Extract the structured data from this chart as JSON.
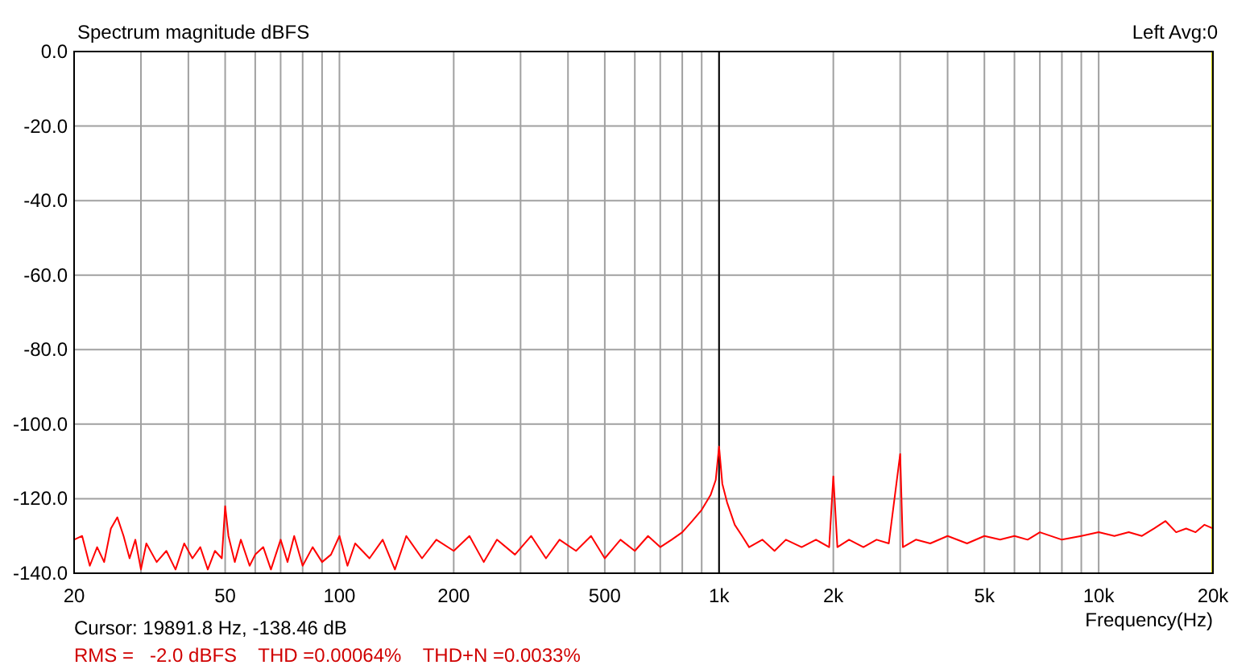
{
  "chart_data": {
    "type": "line",
    "title": "Spectrum magnitude dBFS",
    "xlabel": "Frequency(Hz)",
    "log": "x",
    "grid": true,
    "marker": "none",
    "line_style": "solid",
    "xlim": [
      20,
      20000
    ],
    "ylim": [
      -140,
      0
    ],
    "xticks": [
      20,
      {
        "value": 30,
        "label": null
      },
      {
        "value": 40,
        "label": null
      },
      50,
      {
        "value": 60,
        "label": null
      },
      {
        "value": 70,
        "label": null
      },
      {
        "value": 80,
        "label": null
      },
      {
        "value": 90,
        "label": null
      },
      100,
      200,
      {
        "value": 300,
        "label": null
      },
      {
        "value": 400,
        "label": null
      },
      500,
      {
        "value": 600,
        "label": null
      },
      {
        "value": 700,
        "label": null
      },
      {
        "value": 800,
        "label": null
      },
      {
        "value": 900,
        "label": null
      },
      {
        "value": 1000,
        "label": "1k"
      },
      {
        "value": 2000,
        "label": "2k"
      },
      {
        "value": 3000,
        "label": null
      },
      {
        "value": 4000,
        "label": null
      },
      {
        "value": 5000,
        "label": "5k"
      },
      {
        "value": 6000,
        "label": null
      },
      {
        "value": 7000,
        "label": null
      },
      {
        "value": 8000,
        "label": null
      },
      {
        "value": 9000,
        "label": null
      },
      {
        "value": 10000,
        "label": "10k"
      },
      {
        "value": 20000,
        "label": "20k"
      }
    ],
    "yticks": [
      {
        "value": -140,
        "label": "-140.0"
      },
      {
        "value": -120,
        "label": "-120.0"
      },
      {
        "value": -100,
        "label": "-100.0"
      },
      {
        "value": -80,
        "label": "-80.0"
      },
      {
        "value": -60,
        "label": "-60.0"
      },
      {
        "value": -40,
        "label": "-40.0"
      },
      {
        "value": -20,
        "label": "-20.0"
      },
      {
        "value": 0,
        "label": "0.0"
      }
    ],
    "ref_lines": [
      {
        "axis": "x",
        "value": 1000,
        "color": "#000000"
      },
      {
        "axis": "x",
        "value": 19891.8,
        "color": "#c8c800"
      }
    ],
    "annotations": [
      "Left Avg:0",
      "Cursor: 19891.8 Hz, -138.46 dB",
      "RMS =   -2.0 dBFS    THD =0.00064%    THD+N =0.0033%"
    ],
    "series": [
      {
        "color": "#ff0000",
        "x": [
          20,
          21,
          22,
          23,
          24,
          25,
          26,
          27,
          28,
          29,
          30,
          31,
          33,
          35,
          37,
          39,
          41,
          43,
          45,
          47,
          49,
          50,
          51,
          53,
          55,
          58,
          60,
          63,
          66,
          70,
          73,
          76,
          80,
          85,
          90,
          95,
          100,
          105,
          110,
          120,
          130,
          140,
          150,
          165,
          180,
          200,
          220,
          240,
          260,
          290,
          320,
          350,
          380,
          420,
          460,
          500,
          550,
          600,
          650,
          700,
          750,
          800,
          850,
          900,
          950,
          980,
          1000,
          1020,
          1050,
          1100,
          1150,
          1200,
          1300,
          1400,
          1500,
          1650,
          1800,
          1950,
          2000,
          2050,
          2200,
          2400,
          2600,
          2800,
          3000,
          3050,
          3300,
          3600,
          4000,
          4500,
          5000,
          5500,
          6000,
          6500,
          7000,
          8000,
          9000,
          10000,
          11000,
          12000,
          13000,
          14000,
          15000,
          16000,
          17000,
          18000,
          19000,
          20000
        ],
        "values": [
          -131,
          -130,
          -138,
          -133,
          -137,
          -128,
          -125,
          -130,
          -136,
          -131,
          -139,
          -132,
          -137,
          -134,
          -139,
          -132,
          -136,
          -133,
          -139,
          -134,
          -136,
          -122,
          -130,
          -137,
          -131,
          -138,
          -135,
          -133,
          -139,
          -131,
          -137,
          -130,
          -138,
          -133,
          -137,
          -135,
          -130,
          -138,
          -132,
          -136,
          -131,
          -139,
          -130,
          -136,
          -131,
          -134,
          -130,
          -137,
          -131,
          -135,
          -130,
          -136,
          -131,
          -134,
          -130,
          -136,
          -131,
          -134,
          -130,
          -133,
          -131,
          -129,
          -126,
          -123,
          -119,
          -115,
          -106,
          -116,
          -121,
          -127,
          -130,
          -133,
          -131,
          -134,
          -131,
          -133,
          -131,
          -133,
          -114,
          -133,
          -131,
          -133,
          -131,
          -132,
          -108,
          -133,
          -131,
          -132,
          -130,
          -132,
          -130,
          -131,
          -130,
          -131,
          -129,
          -131,
          -130,
          -129,
          -130,
          -129,
          -130,
          -128,
          -126,
          -129,
          -128,
          -129,
          -127,
          -128
        ]
      }
    ]
  }
}
